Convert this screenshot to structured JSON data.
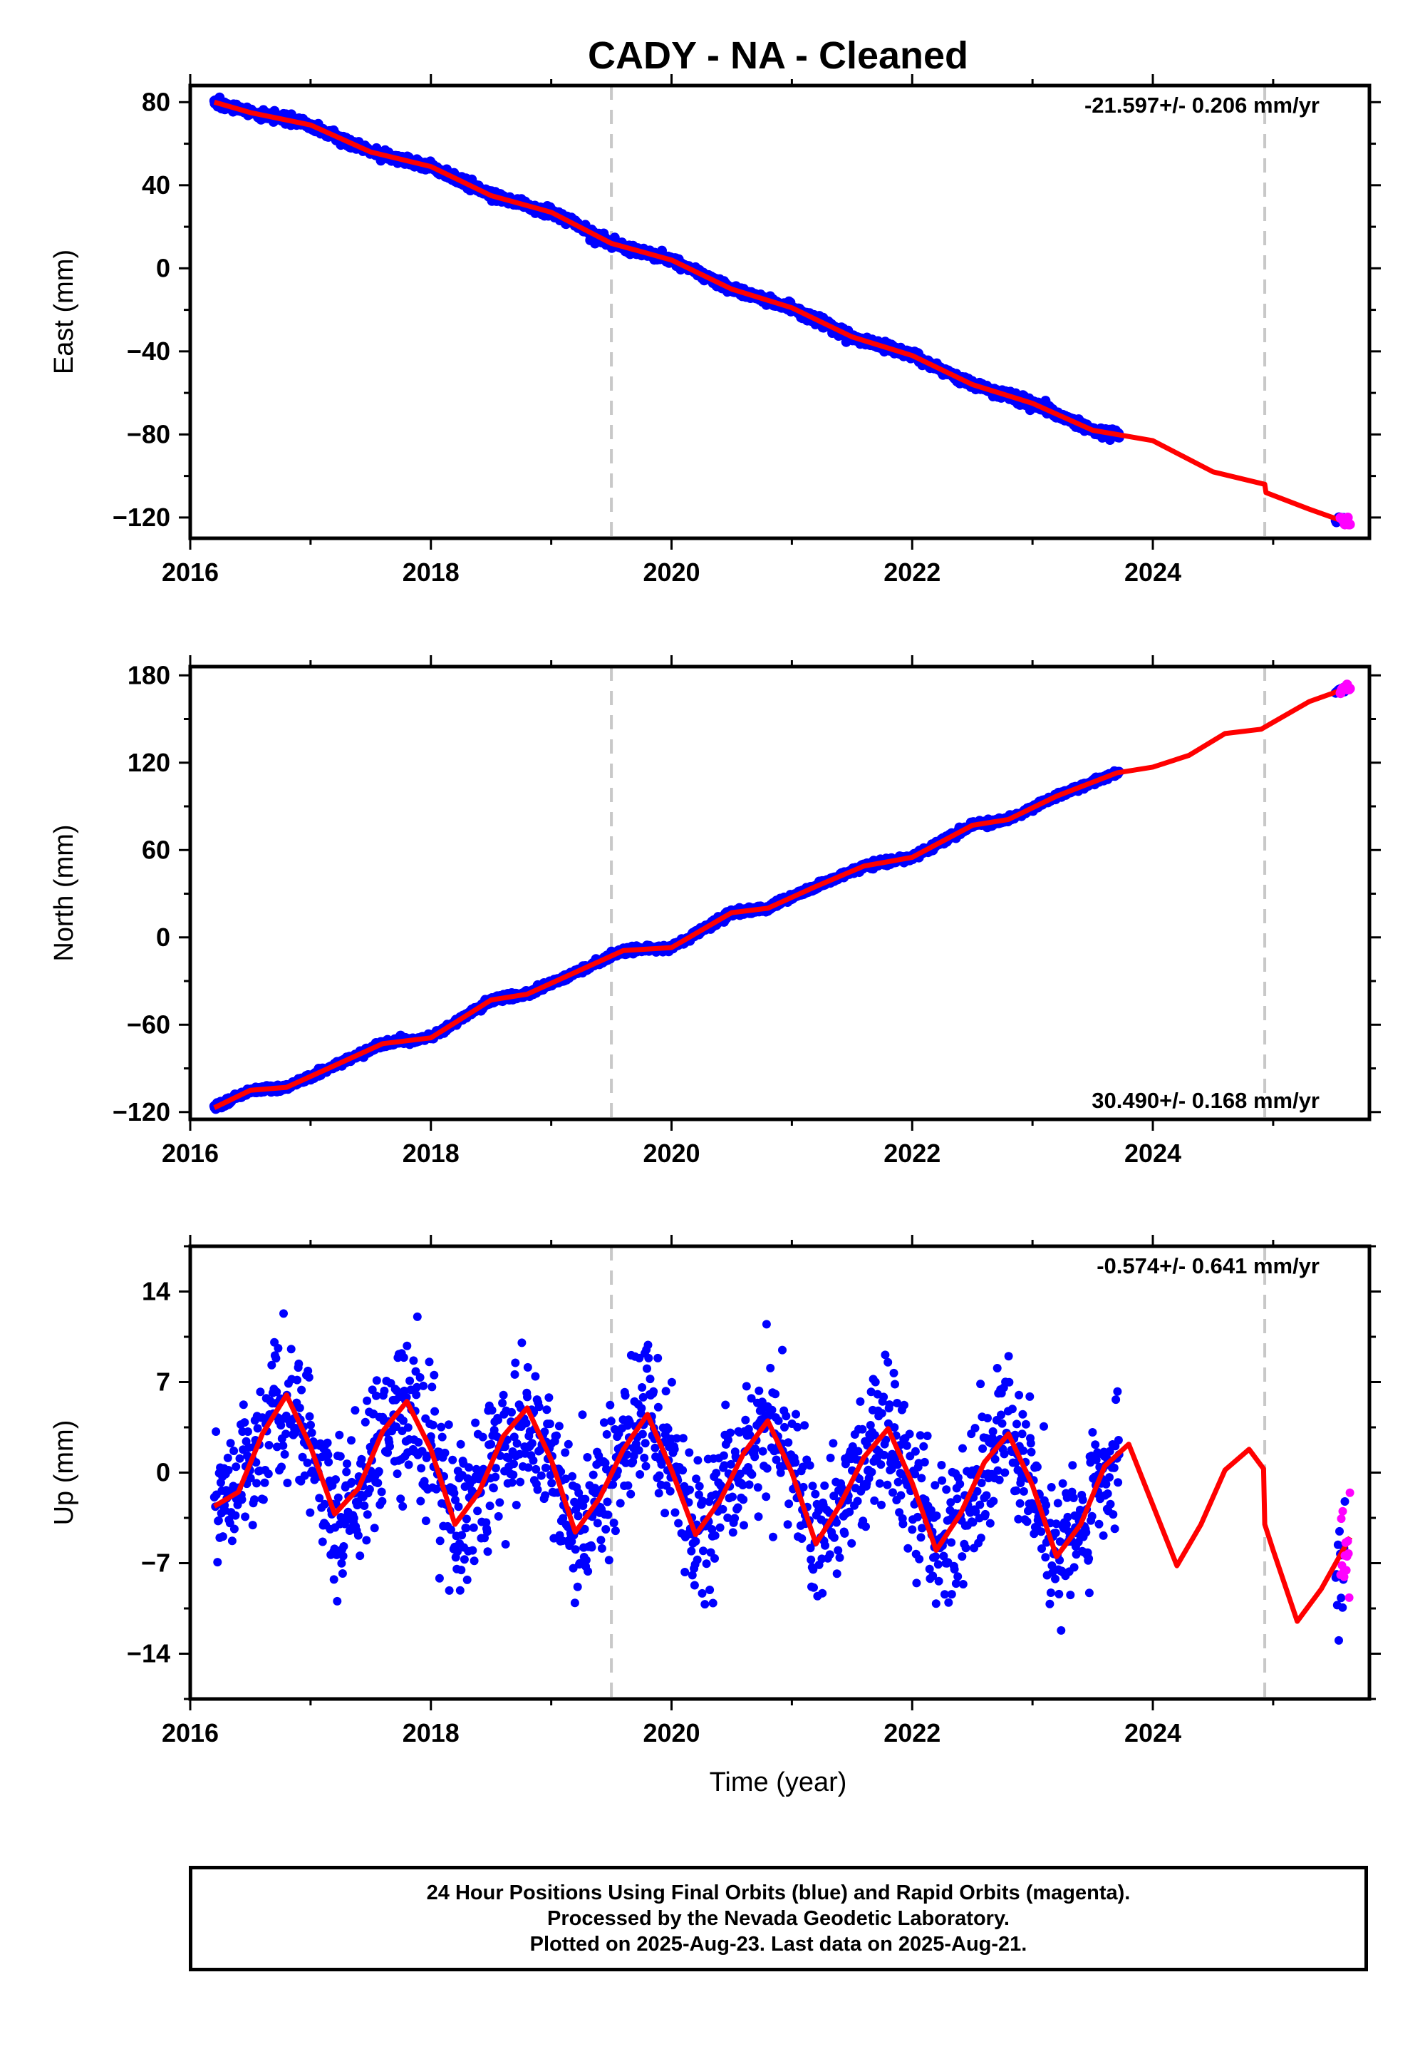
{
  "title": "CADY  - NA - Cleaned",
  "xlabel": "Time (year)",
  "colors": {
    "final": "#0000ff",
    "rapid": "#ff00ff",
    "model": "#ff0000",
    "break": "#c8c8c8",
    "axis": "#000000"
  },
  "footer": {
    "line1": "24 Hour Positions Using Final Orbits (blue) and Rapid Orbits (magenta).",
    "line2": "Processed by the Nevada Geodetic Laboratory.",
    "line3": "Plotted on 2025-Aug-23. Last data on 2025-Aug-21."
  },
  "chart_data": [
    {
      "type": "scatter",
      "panel": "east",
      "ylabel": "East (mm)",
      "rate_label": "-21.597+/- 0.206 mm/yr",
      "rate_mm_per_yr": -21.597,
      "xlim": [
        2016.0,
        2025.8
      ],
      "ylim": [
        -130,
        88
      ],
      "xticks": [
        2016,
        2018,
        2020,
        2022,
        2024
      ],
      "yticks": [
        -120,
        -80,
        -40,
        0,
        40,
        80
      ],
      "break_lines": [
        2019.5,
        2024.93
      ],
      "series": [
        {
          "name": "Final Orbits (blue)",
          "data_span": [
            2016.2,
            2023.72
          ]
        },
        {
          "name": "Rapid Orbits (magenta)",
          "data_span": [
            2025.56,
            2025.64
          ]
        }
      ],
      "model_curve": {
        "x": [
          2016.2,
          2016.5,
          2017.0,
          2017.5,
          2018.0,
          2018.5,
          2019.0,
          2019.5,
          2020.0,
          2020.5,
          2021.0,
          2021.5,
          2022.0,
          2022.5,
          2023.0,
          2023.5,
          2024.0,
          2024.5,
          2024.93,
          2024.94,
          2025.3,
          2025.64
        ],
        "y": [
          80,
          75,
          69,
          56,
          49,
          35,
          27,
          12,
          4,
          -10,
          -19,
          -33,
          -42,
          -56,
          -65,
          -78,
          -83,
          -98,
          -104,
          -108,
          -116,
          -123
        ]
      }
    },
    {
      "type": "scatter",
      "panel": "north",
      "ylabel": "North (mm)",
      "rate_label": "30.490+/- 0.168 mm/yr",
      "rate_mm_per_yr": 30.49,
      "xlim": [
        2016.0,
        2025.8
      ],
      "ylim": [
        -125,
        186
      ],
      "xticks": [
        2016,
        2018,
        2020,
        2022,
        2024
      ],
      "yticks": [
        -120,
        -60,
        0,
        60,
        120,
        180
      ],
      "break_lines": [
        2019.5,
        2024.93
      ],
      "series": [
        {
          "name": "Final Orbits (blue)",
          "data_span": [
            2016.2,
            2023.72
          ]
        },
        {
          "name": "Rapid Orbits (magenta)",
          "data_span": [
            2025.56,
            2025.64
          ]
        }
      ],
      "model_curve": {
        "x": [
          2016.2,
          2016.5,
          2016.8,
          2017.2,
          2017.6,
          2018.0,
          2018.5,
          2018.8,
          2019.2,
          2019.6,
          2020.0,
          2020.5,
          2020.8,
          2021.2,
          2021.6,
          2022.0,
          2022.5,
          2022.8,
          2023.2,
          2023.7,
          2024.0,
          2024.3,
          2024.6,
          2024.9,
          2025.3,
          2025.64
        ],
        "y": [
          -117,
          -105,
          -103,
          -88,
          -73,
          -69,
          -43,
          -39,
          -24,
          -9,
          -7,
          17,
          20,
          35,
          49,
          55,
          77,
          81,
          97,
          113,
          117,
          125,
          140,
          143,
          162,
          172
        ]
      }
    },
    {
      "type": "scatter",
      "panel": "up",
      "ylabel": "Up (mm)",
      "rate_label": "-0.574+/- 0.641 mm/yr",
      "rate_mm_per_yr": -0.574,
      "xlim": [
        2016.0,
        2025.8
      ],
      "ylim": [
        -17.5,
        17.5
      ],
      "xticks": [
        2016,
        2018,
        2020,
        2022,
        2024
      ],
      "yticks": [
        -14,
        -7,
        0,
        7,
        14
      ],
      "break_lines": [
        2019.5,
        2024.93
      ],
      "series": [
        {
          "name": "Final Orbits (blue)",
          "data_span": [
            2016.2,
            2023.72
          ]
        },
        {
          "name": "Rapid Orbits (magenta)",
          "data_span": [
            2025.56,
            2025.64
          ]
        }
      ],
      "model_curve": {
        "x": [
          2016.2,
          2016.4,
          2016.6,
          2016.8,
          2017.0,
          2017.2,
          2017.4,
          2017.6,
          2017.8,
          2018.0,
          2018.2,
          2018.4,
          2018.6,
          2018.8,
          2019.0,
          2019.2,
          2019.4,
          2019.6,
          2019.8,
          2020.0,
          2020.2,
          2020.4,
          2020.6,
          2020.8,
          2021.0,
          2021.2,
          2021.4,
          2021.6,
          2021.8,
          2022.0,
          2022.2,
          2022.4,
          2022.6,
          2022.8,
          2023.0,
          2023.2,
          2023.4,
          2023.6,
          2023.8,
          2024.0,
          2024.2,
          2024.4,
          2024.6,
          2024.8,
          2024.92,
          2024.93,
          2025.0,
          2025.2,
          2025.4,
          2025.64
        ],
        "y": [
          -2.6,
          -1.5,
          3.0,
          6.0,
          2.0,
          -3.2,
          -1.2,
          3.2,
          5.5,
          1.8,
          -4.0,
          -1.5,
          2.8,
          5.0,
          1.0,
          -4.6,
          -2.0,
          1.8,
          4.5,
          0.2,
          -4.8,
          -2.2,
          1.5,
          4.0,
          0.0,
          -5.5,
          -2.5,
          1.2,
          3.4,
          -0.8,
          -6.0,
          -3.2,
          0.8,
          3.0,
          -1.0,
          -6.5,
          -4.0,
          0.5,
          2.2,
          -2.5,
          -7.2,
          -4.0,
          0.2,
          1.8,
          0.3,
          -4.0,
          -6.0,
          -11.5,
          -9.0,
          -5.0
        ]
      }
    }
  ]
}
